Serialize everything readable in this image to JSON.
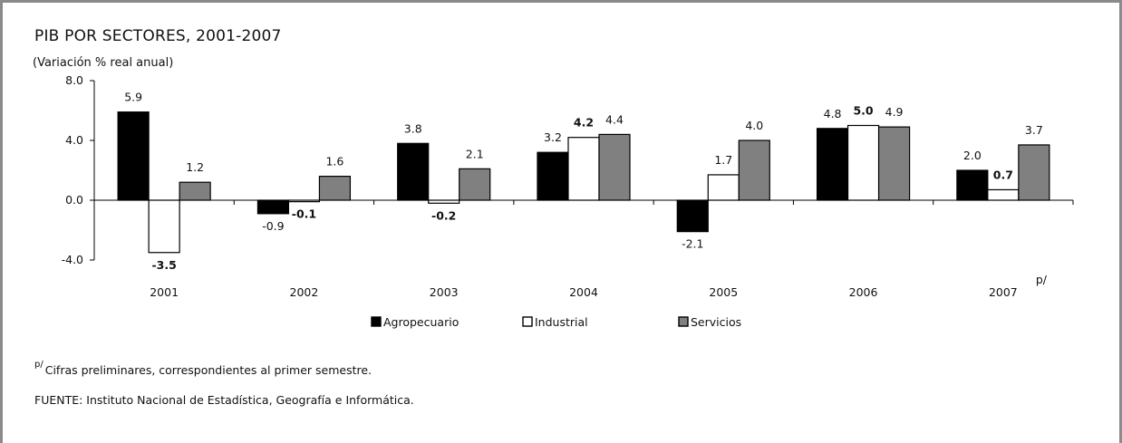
{
  "title": "PIB POR SECTORES, 2001-2007",
  "subtitle": "(Variación % real anual)",
  "note_mark": "p/",
  "note_text": "Cifras preliminares, correspondientes al primer semestre.",
  "source": "FUENTE: Instituto Nacional de Estadística, Geografía e Informática.",
  "chart_data": {
    "type": "bar",
    "title": "PIB POR SECTORES, 2001-2007",
    "ylabel": "(Variación % real anual)",
    "categories": [
      "2001",
      "2002",
      "2003",
      "2004",
      "2005",
      "2006",
      "2007"
    ],
    "category_suffix": [
      "",
      "",
      "",
      "",
      "",
      "",
      "p/"
    ],
    "ylim": [
      -4.0,
      8.0
    ],
    "yticks": [
      "-4.0",
      "0.0",
      "4.0",
      "8.0"
    ],
    "ytick_values": [
      -4.0,
      0.0,
      4.0,
      8.0
    ],
    "legend_position": "bottom",
    "grid": false,
    "series": [
      {
        "name": "Agropecuario",
        "color": "#000000",
        "values": [
          5.9,
          -0.9,
          3.8,
          3.2,
          -2.1,
          4.8,
          2.0
        ],
        "labels": [
          "5.9",
          "-0.9",
          "3.8",
          "3.2",
          "-2.1",
          "4.8",
          "2.0"
        ]
      },
      {
        "name": "Industrial",
        "color": "#ffffff",
        "values": [
          -3.5,
          -0.1,
          -0.2,
          4.2,
          1.7,
          5.0,
          0.7
        ],
        "labels": [
          "-3.5",
          "-0.1",
          "-0.2",
          "4.2",
          "1.7",
          "5.0",
          "0.7"
        ]
      },
      {
        "name": "Servicios",
        "color": "#808080",
        "values": [
          1.2,
          1.6,
          2.1,
          4.4,
          4.0,
          4.9,
          3.7
        ],
        "labels": [
          "1.2",
          "1.6",
          "2.1",
          "4.4",
          "4.0",
          "4.9",
          "3.7"
        ]
      }
    ]
  }
}
